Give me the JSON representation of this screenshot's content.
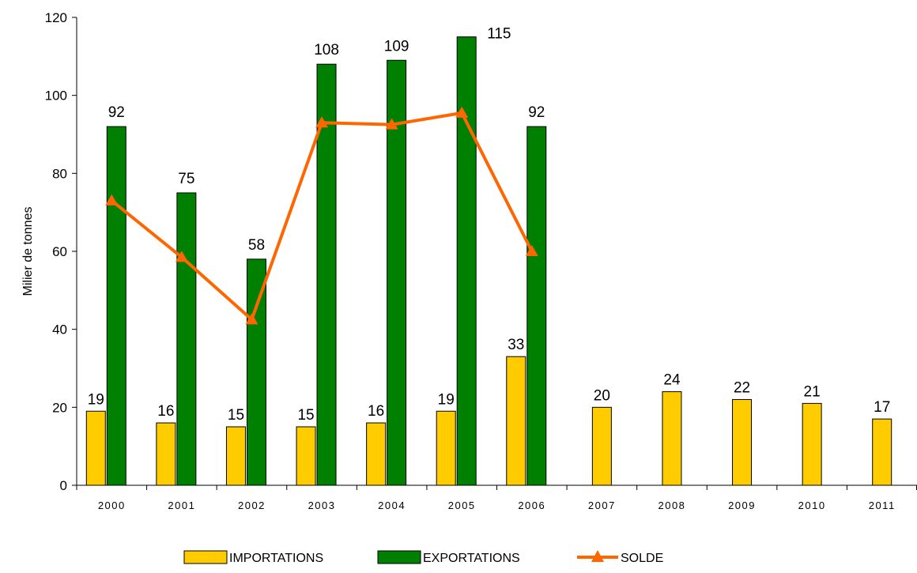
{
  "chart_data": {
    "type": "bar",
    "title": "",
    "xlabel": "",
    "ylabel": "Milier de tonnes",
    "ylim": [
      0,
      120
    ],
    "yticks": [
      0,
      20,
      40,
      60,
      80,
      100,
      120
    ],
    "categories": [
      "2000",
      "2001",
      "2002",
      "2003",
      "2004",
      "2005",
      "2006",
      "2007",
      "2008",
      "2009",
      "2010",
      "2011"
    ],
    "series": [
      {
        "name": "IMPORTATIONS",
        "type": "bar",
        "color": "#FFCC00",
        "values": [
          19,
          16,
          15,
          15,
          16,
          19,
          33,
          20,
          24,
          22,
          21,
          17
        ],
        "labels": [
          "19",
          "16",
          "15",
          "15",
          "16",
          "19",
          "33",
          "20",
          "24",
          "22",
          "21",
          "17"
        ]
      },
      {
        "name": "EXPORTATIONS",
        "type": "bar",
        "color": "#008000",
        "values": [
          92,
          75,
          58,
          108,
          109,
          115,
          92,
          null,
          null,
          null,
          null,
          null
        ],
        "labels": [
          "92",
          "75",
          "58",
          "108",
          "109",
          "115",
          "92",
          null,
          null,
          null,
          null,
          null
        ]
      },
      {
        "name": "SOLDE",
        "type": "line",
        "marker": "triangle",
        "color": "#FF6600",
        "values": [
          73,
          58.5,
          42.5,
          93,
          92.5,
          95.5,
          60,
          null,
          null,
          null,
          null,
          null
        ]
      }
    ],
    "legend_position": "bottom-center",
    "grid": false
  }
}
